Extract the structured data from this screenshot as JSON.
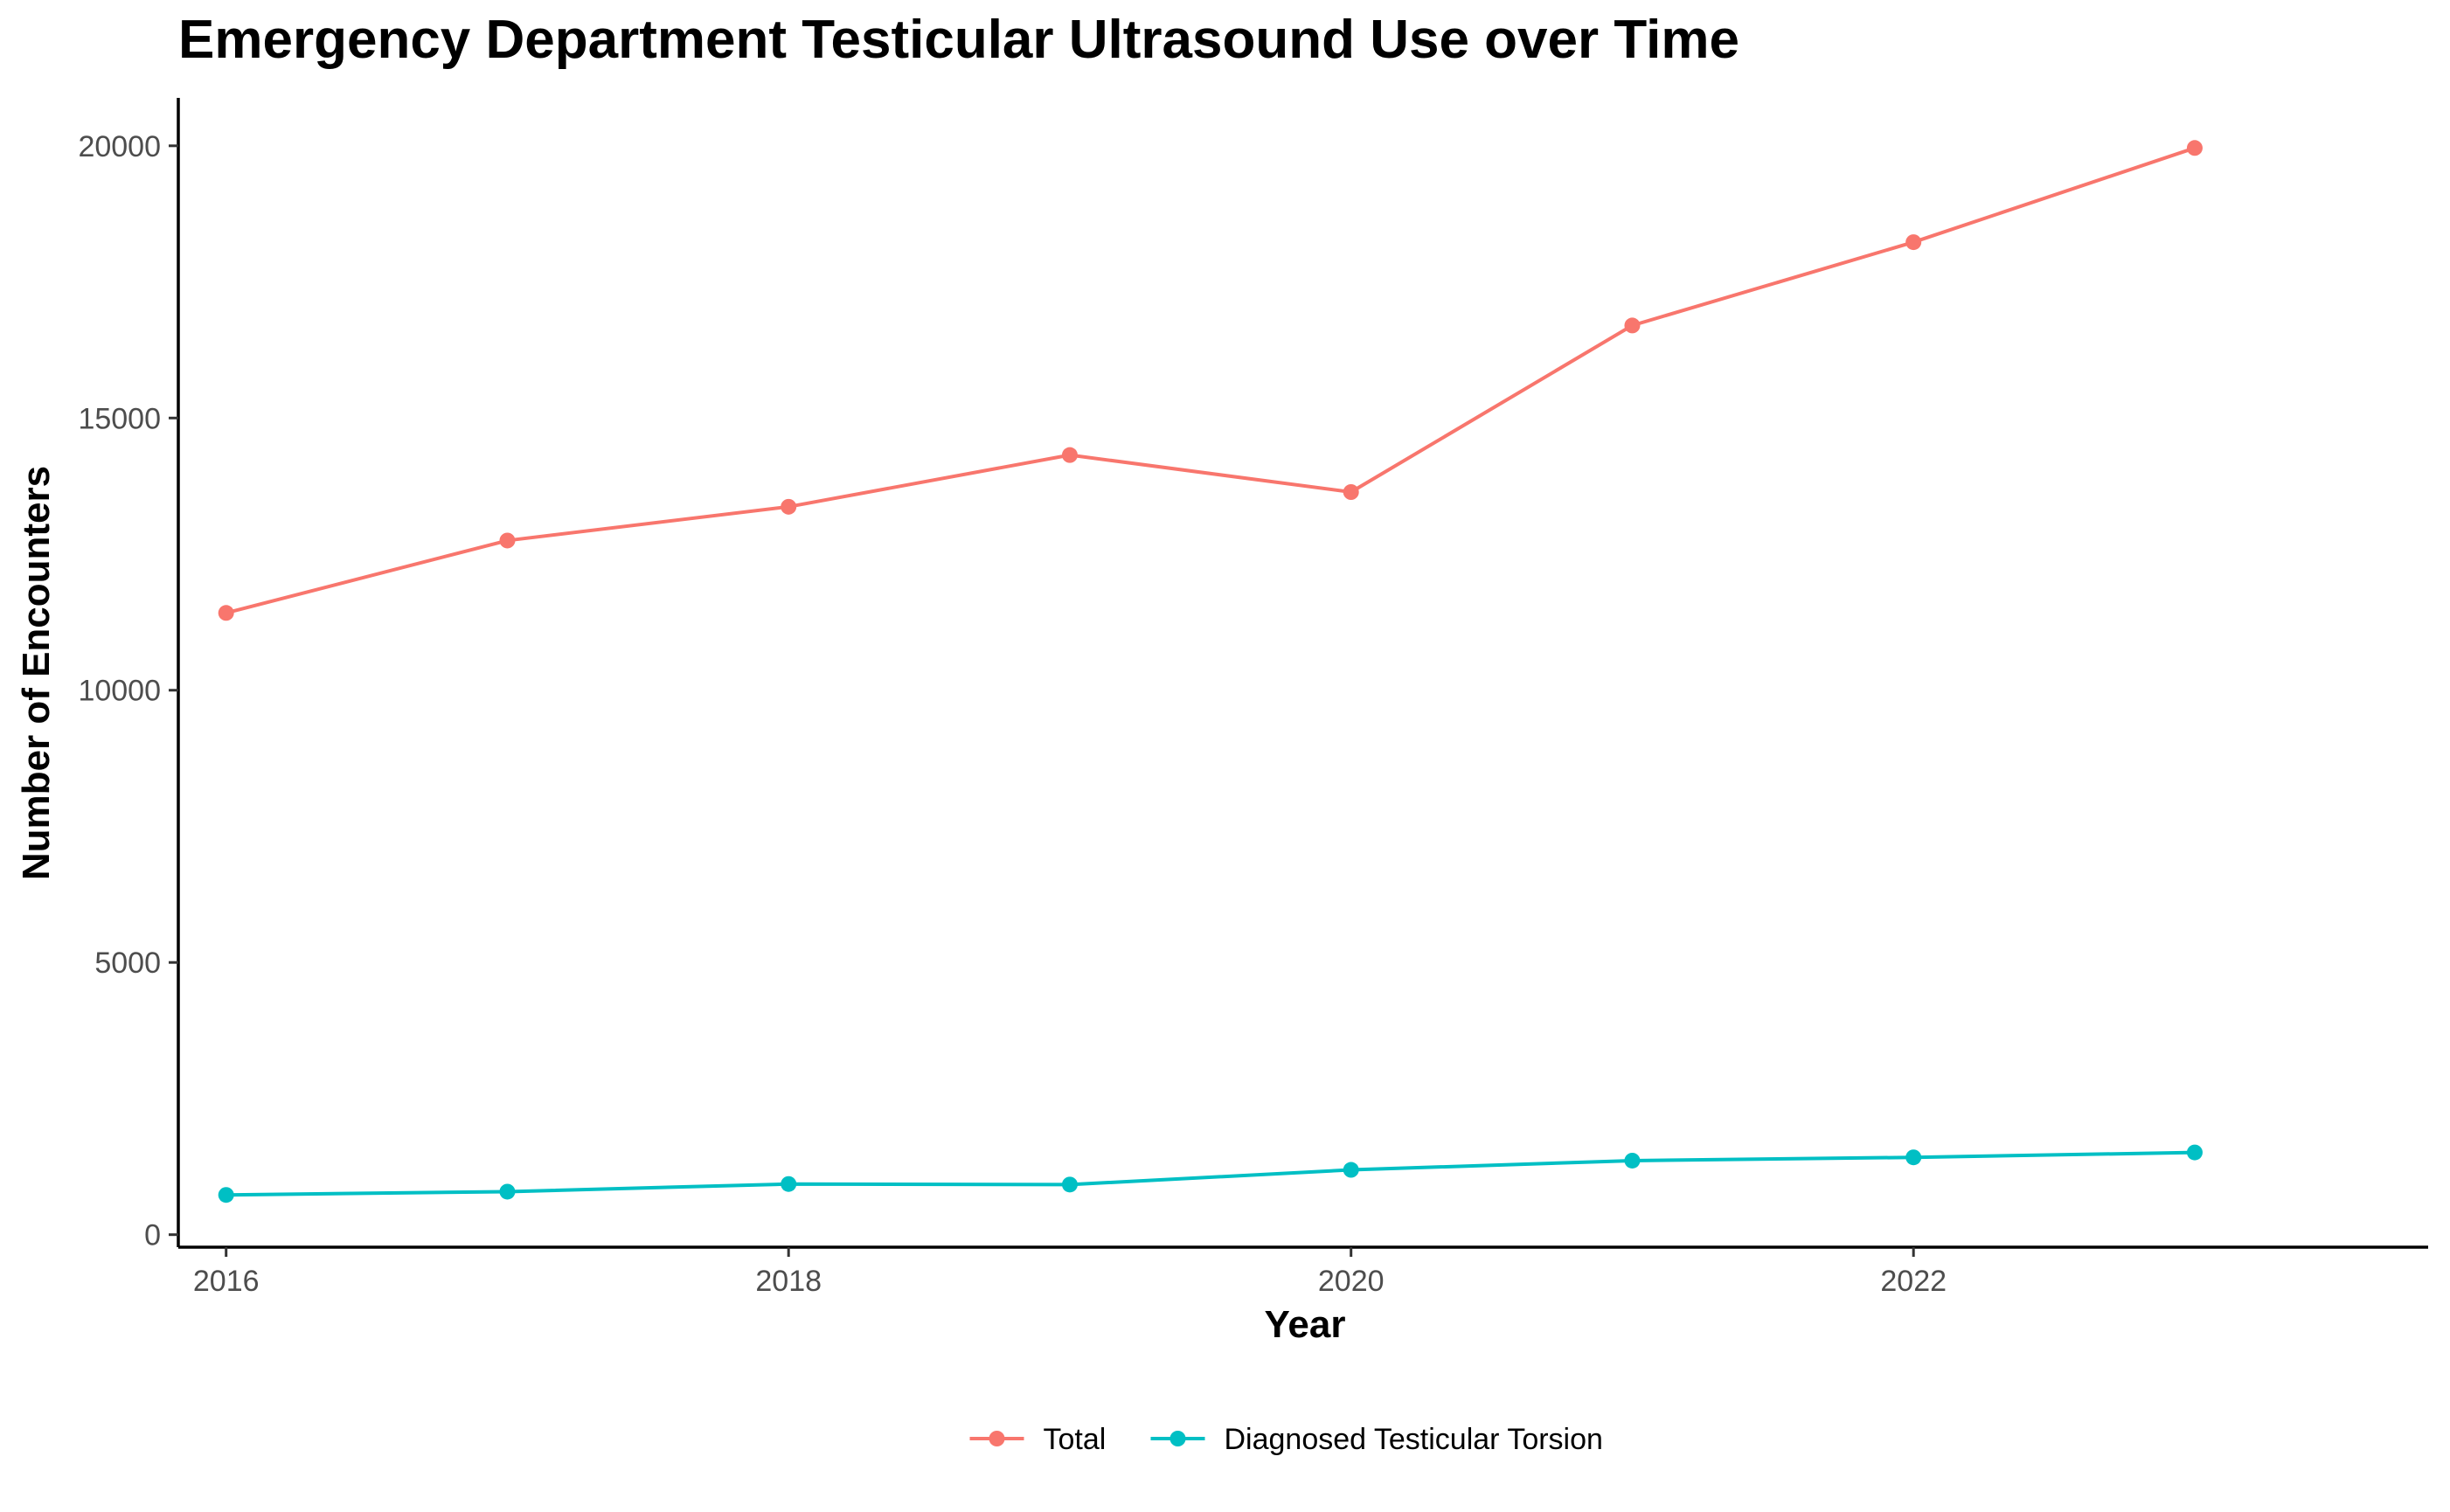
{
  "chart_data": {
    "type": "line",
    "title": "Emergency Department Testicular Ultrasound Use over Time",
    "xlabel": "Year",
    "ylabel": "Number of Encounters",
    "x": [
      2016,
      2017,
      2018,
      2019,
      2020,
      2021,
      2022,
      2023
    ],
    "series": [
      {
        "name": "Total",
        "color": "#F8766D",
        "values": [
          11420,
          12750,
          13370,
          14320,
          13640,
          16700,
          18230,
          19960
        ]
      },
      {
        "name": "Diagnosed Testicular Torsion",
        "color": "#00BFC4",
        "values": [
          730,
          790,
          930,
          920,
          1190,
          1360,
          1420,
          1510
        ]
      }
    ],
    "xlim": [
      2015.83,
      2023.83
    ],
    "ylim": [
      -230,
      20880
    ],
    "x_ticks": [
      2016,
      2018,
      2020,
      2022
    ],
    "y_ticks": [
      0,
      5000,
      10000,
      15000,
      20000
    ],
    "grid": false,
    "legend_position": "bottom"
  }
}
